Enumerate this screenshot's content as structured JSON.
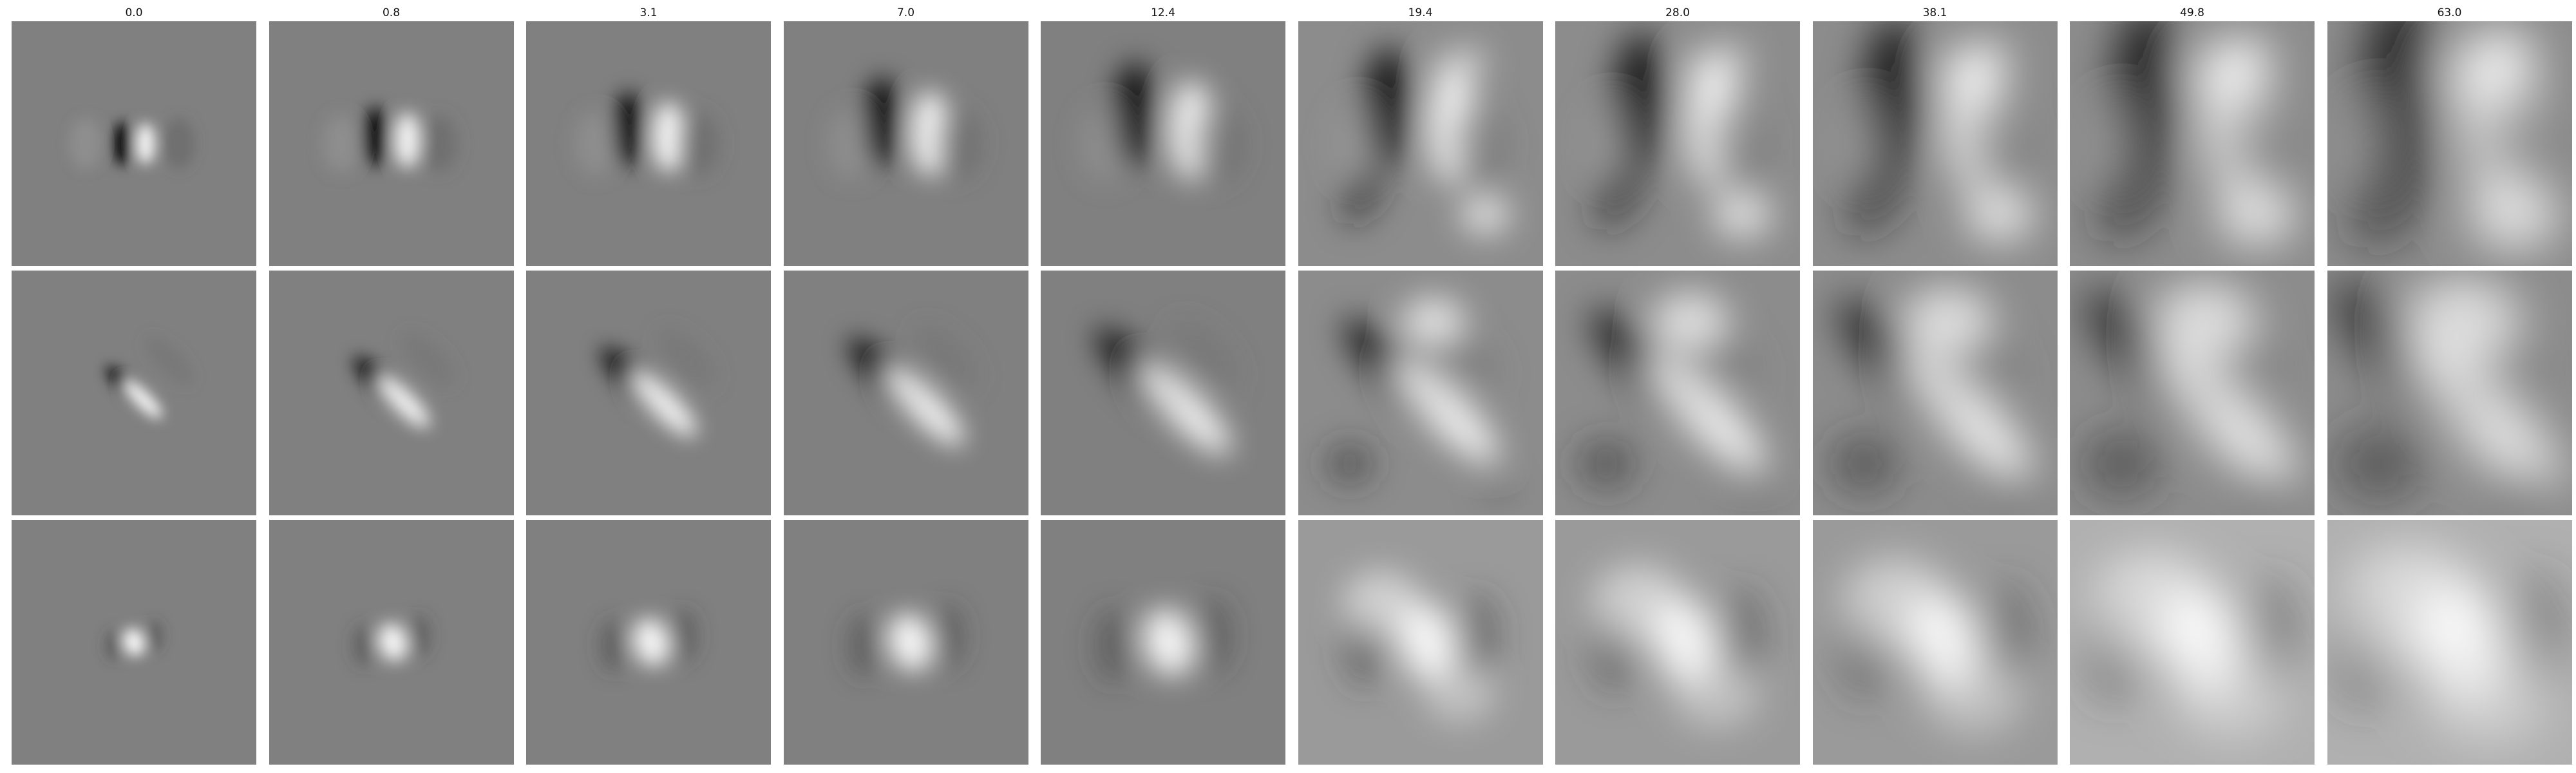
{
  "figure": {
    "column_titles": [
      "0.0",
      "0.8",
      "3.1",
      "7.0",
      "12.4",
      "19.4",
      "28.0",
      "38.1",
      "49.8",
      "63.0"
    ],
    "rows": 3,
    "colormap": "grayscale",
    "background_gray": "#808080"
  }
}
